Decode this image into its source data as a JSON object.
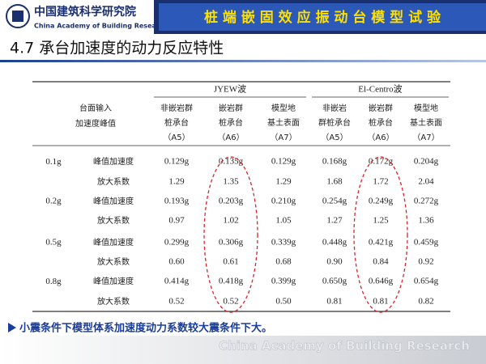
{
  "header": {
    "logo_cn": "中国建筑科学研究院",
    "logo_en": "China Academy of Building Research",
    "banner": "桩 端 嵌 固 效 应 振 动 台 模 型 试 验"
  },
  "subtitle": "4.7 承台加速度的动力反应特性",
  "table": {
    "corner": [
      "台面输入",
      "加速度峰值"
    ],
    "groups": [
      "JYEW波",
      "El-Centro波"
    ],
    "columns": [
      [
        "非嵌岩群",
        "桩承台",
        "（A5）"
      ],
      [
        "嵌岩群",
        "桩承台",
        "（A6）"
      ],
      [
        "模型地",
        "基土表面",
        "（A7）"
      ],
      [
        "非嵌岩",
        "群桩承台",
        "（A5）"
      ],
      [
        "嵌岩群",
        "桩承台",
        "（A6）"
      ],
      [
        "模型地",
        "基土表面",
        "（A7）"
      ]
    ],
    "rows": [
      {
        "level": "0.1g",
        "metrics": [
          {
            "label": "峰值加速度",
            "cells": [
              "0.129g",
              "0.135g",
              "0.129g",
              "0.168g",
              "0.172g",
              "0.204g"
            ]
          },
          {
            "label": "放大系数",
            "cells": [
              "1.29",
              "1.35",
              "1.29",
              "1.68",
              "1.72",
              "2.04"
            ]
          }
        ]
      },
      {
        "level": "0.2g",
        "metrics": [
          {
            "label": "峰值加速度",
            "cells": [
              "0.193g",
              "0.203g",
              "0.210g",
              "0.254g",
              "0.249g",
              "0.272g"
            ]
          },
          {
            "label": "放大系数",
            "cells": [
              "0.97",
              "1.02",
              "1.05",
              "1.27",
              "1.25",
              "1.36"
            ]
          }
        ]
      },
      {
        "level": "0.5g",
        "metrics": [
          {
            "label": "峰值加速度",
            "cells": [
              "0.299g",
              "0.306g",
              "0.339g",
              "0.448g",
              "0.421g",
              "0.459g"
            ]
          },
          {
            "label": "放大系数",
            "cells": [
              "0.60",
              "0.61",
              "0.68",
              "0.90",
              "0.84",
              "0.92"
            ]
          }
        ]
      },
      {
        "level": "0.8g",
        "metrics": [
          {
            "label": "峰值加速度",
            "cells": [
              "0.414g",
              "0.418g",
              "0.399g",
              "0.650g",
              "0.646g",
              "0.654g"
            ]
          },
          {
            "label": "放大系数",
            "cells": [
              "0.52",
              "0.52",
              "0.50",
              "0.81",
              "0.81",
              "0.82"
            ]
          }
        ]
      }
    ]
  },
  "note": "小震条件下模型体系加速度动力系数较大震条件下大。",
  "footer": "China Academy of Building Research"
}
